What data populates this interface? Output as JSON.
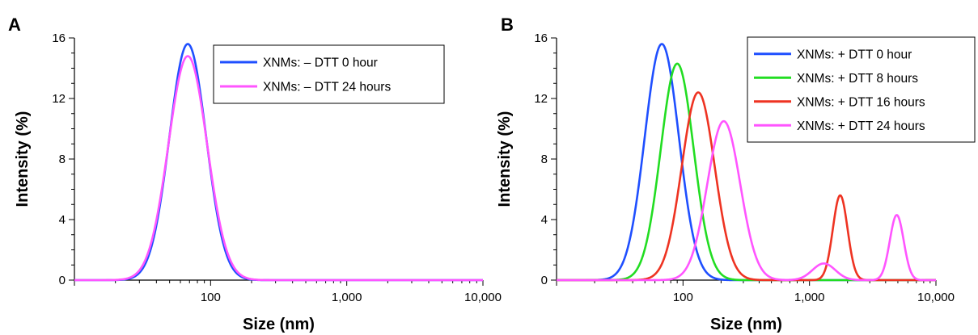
{
  "chart_data": [
    {
      "panel_label": "A",
      "type": "line",
      "x_scale": "log",
      "xlim": [
        10,
        10000
      ],
      "ylim": [
        0,
        16
      ],
      "xlabel": "Size (nm)",
      "ylabel": "Intensity (%)",
      "x_ticks": [
        "100",
        "1,000",
        "10,000"
      ],
      "y_ticks": [
        "0",
        "4",
        "8",
        "12",
        "16"
      ],
      "legend_position": "top-right",
      "series": [
        {
          "name": "XNMs: – DTT 0 hour",
          "color": "#1f4fff",
          "peaks": [
            {
              "center": 68,
              "height": 15.6,
              "sigma_log10": 0.135
            }
          ]
        },
        {
          "name": "XNMs: – DTT 24 hours",
          "color": "#ff55ff",
          "peaks": [
            {
              "center": 68,
              "height": 14.8,
              "sigma_log10": 0.142
            }
          ]
        }
      ]
    },
    {
      "panel_label": "B",
      "type": "line",
      "x_scale": "log",
      "xlim": [
        10,
        10000
      ],
      "ylim": [
        0,
        16
      ],
      "xlabel": "Size (nm)",
      "ylabel": "Intensity (%)",
      "x_ticks": [
        "100",
        "1,000",
        "10,000"
      ],
      "y_ticks": [
        "0",
        "4",
        "8",
        "12",
        "16"
      ],
      "legend_position": "top-right",
      "series": [
        {
          "name": "XNMs: + DTT 0 hour",
          "color": "#1f4fff",
          "peaks": [
            {
              "center": 68,
              "height": 15.6,
              "sigma_log10": 0.135
            }
          ]
        },
        {
          "name": "XNMs: + DTT 8 hours",
          "color": "#22dd22",
          "peaks": [
            {
              "center": 90,
              "height": 14.3,
              "sigma_log10": 0.13
            }
          ]
        },
        {
          "name": "XNMs: + DTT 16 hours",
          "color": "#ee3322",
          "peaks": [
            {
              "center": 132,
              "height": 12.4,
              "sigma_log10": 0.13
            },
            {
              "center": 1750,
              "height": 5.6,
              "sigma_log10": 0.058
            }
          ]
        },
        {
          "name": "XNMs: + DTT 24 hours",
          "color": "#ff55ff",
          "peaks": [
            {
              "center": 210,
              "height": 10.5,
              "sigma_log10": 0.13
            },
            {
              "center": 1300,
              "height": 1.1,
              "sigma_log10": 0.09
            },
            {
              "center": 4900,
              "height": 4.3,
              "sigma_log10": 0.055
            }
          ]
        }
      ]
    }
  ]
}
